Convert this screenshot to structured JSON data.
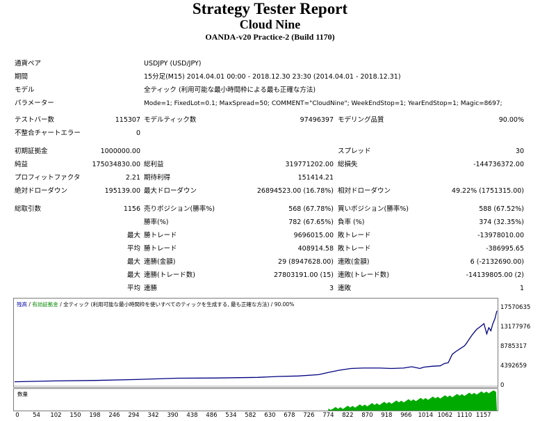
{
  "header": {
    "title": "Strategy Tester Report",
    "subtitle": "Cloud Nine",
    "build": "OANDA-v20 Practice-2 (Build 1170)"
  },
  "settings": [
    {
      "label": "通貨ペア",
      "value": "USDJPY (USD/JPY)"
    },
    {
      "label": "期間",
      "value": "15分足(M15) 2014.04.01 00:00 - 2018.12.30 23:30 (2014.04.01 - 2018.12.31)"
    },
    {
      "label": "モデル",
      "value": "全ティック (利用可能な最小時間枠による最も正確な方法)"
    },
    {
      "label": "パラメーター",
      "value": "Mode=1; FixedLot=0.1; MaxSpread=50; COMMENT=\"CloudNine\"; WeekEndStop=1; YearEndStop=1; Magic=8697;"
    }
  ],
  "stats": {
    "bars_label": "テストバー数",
    "bars_value": "115307",
    "ticks_label": "モデルティック数",
    "ticks_value": "97496397",
    "quality_label": "モデリング品質",
    "quality_value": "90.00%",
    "mismatch_label": "不整合チャートエラー",
    "mismatch_value": "0",
    "deposit_label": "初期証拠金",
    "deposit_value": "1000000.00",
    "spread_label": "スプレッド",
    "spread_value": "30",
    "net_label": "純益",
    "net_value": "175034830.00",
    "gross_profit_label": "総利益",
    "gross_profit_value": "319771202.00",
    "gross_loss_label": "総損失",
    "gross_loss_value": "-144736372.00",
    "pf_label": "プロフィットファクタ",
    "pf_value": "2.21",
    "payoff_label": "期待利得",
    "payoff_value": "151414.21",
    "abs_dd_label": "絶対ドローダウン",
    "abs_dd_value": "195139.00",
    "max_dd_label": "最大ドローダウン",
    "max_dd_value": "26894523.00 (16.78%)",
    "rel_dd_label": "相対ドローダウン",
    "rel_dd_value": "49.22% (1751315.00)",
    "total_trades_label": "総取引数",
    "total_trades_value": "1156",
    "short_label": "売りポジション(勝率%)",
    "short_value": "568 (67.78%)",
    "long_label": "買いポジション(勝率%)",
    "long_value": "588 (67.52%)",
    "win_rate_label": "勝率(%)",
    "win_rate_value": "782 (67.65%)",
    "loss_rate_label": "負率 (%)",
    "loss_rate_value": "374 (32.35%)",
    "max_word": "最大",
    "avg_word": "平均",
    "largest_win_label": "勝トレード",
    "largest_win_value": "9696015.00",
    "largest_loss_label": "敗トレード",
    "largest_loss_value": "-13978010.00",
    "avg_win_label": "勝トレード",
    "avg_win_value": "408914.58",
    "avg_loss_label": "敗トレード",
    "avg_loss_value": "-386995.65",
    "max_cons_wins_money_label": "連勝(金額)",
    "max_cons_wins_money_value": "29 (8947628.00)",
    "max_cons_losses_money_label": "連敗(金額)",
    "max_cons_losses_money_value": "6 (-2132690.00)",
    "max_cons_profit_label": "連勝(トレード数)",
    "max_cons_profit_value": "27803191.00 (15)",
    "max_cons_loss_label": "連敗(トレード数)",
    "max_cons_loss_value": "-14139805.00 (2)",
    "avg_cons_wins_label": "連勝",
    "avg_cons_wins_value": "3",
    "avg_cons_losses_label": "連敗",
    "avg_cons_losses_value": "1"
  },
  "chart_data": {
    "type": "line",
    "legend": {
      "balance": "残高",
      "margin": "有効証拠金",
      "model": "全ティック (利用可能な最小時間枠を使いすべてのティックを生成する, 最も正確な方法)",
      "quality": "90.00%"
    },
    "volume_label": "数量",
    "ylim": [
      0,
      17570635
    ],
    "yticks": [
      "17570635",
      "13177976",
      "8785317",
      "4392659",
      "0"
    ],
    "xlim": [
      0,
      1190
    ],
    "xticks": [
      "0",
      "54",
      "102",
      "150",
      "198",
      "246",
      "294",
      "342",
      "390",
      "438",
      "486",
      "534",
      "582",
      "630",
      "678",
      "726",
      "774",
      "822",
      "870",
      "918",
      "966",
      "1014",
      "1062",
      "1110",
      "1157"
    ],
    "series": [
      {
        "color": "#000080",
        "points": [
          [
            0,
            1000000
          ],
          [
            100,
            1200000
          ],
          [
            200,
            1300000
          ],
          [
            300,
            1500000
          ],
          [
            400,
            1800000
          ],
          [
            500,
            1850000
          ],
          [
            600,
            2000000
          ],
          [
            650,
            2200000
          ],
          [
            700,
            2300000
          ],
          [
            750,
            2600000
          ],
          [
            774,
            3100000
          ],
          [
            800,
            3600000
          ],
          [
            830,
            4000000
          ],
          [
            860,
            4100000
          ],
          [
            900,
            4100000
          ],
          [
            930,
            4000000
          ],
          [
            960,
            4100000
          ],
          [
            980,
            4400000
          ],
          [
            1000,
            4000000
          ],
          [
            1010,
            4300000
          ],
          [
            1030,
            4500000
          ],
          [
            1050,
            4600000
          ],
          [
            1060,
            5100000
          ],
          [
            1070,
            5300000
          ],
          [
            1080,
            7200000
          ],
          [
            1090,
            7900000
          ],
          [
            1100,
            8500000
          ],
          [
            1110,
            9100000
          ],
          [
            1115,
            9700000
          ],
          [
            1120,
            10400000
          ],
          [
            1130,
            11700000
          ],
          [
            1140,
            12800000
          ],
          [
            1150,
            13500000
          ],
          [
            1158,
            14100000
          ],
          [
            1165,
            11800000
          ],
          [
            1170,
            13200000
          ],
          [
            1175,
            12500000
          ],
          [
            1180,
            14100000
          ],
          [
            1185,
            15200000
          ],
          [
            1190,
            17000000
          ]
        ]
      }
    ],
    "volume_fill": "#00aa00"
  }
}
